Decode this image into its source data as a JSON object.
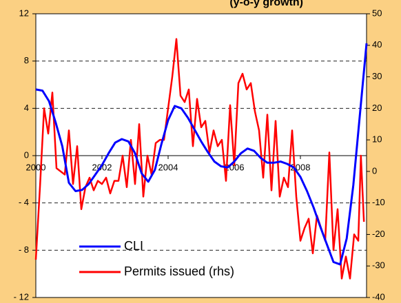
{
  "chart_data": {
    "type": "line",
    "title": "(y-o-y growth)",
    "xlim": [
      2000,
      2010
    ],
    "xticks": [
      2000,
      2002,
      2004,
      2006,
      2008
    ],
    "ylim": [
      -12,
      12
    ],
    "yticks": [
      {
        "value": 12,
        "label": "12"
      },
      {
        "value": 8,
        "label": "8"
      },
      {
        "value": 4,
        "label": "4"
      },
      {
        "value": 0,
        "label": "0"
      },
      {
        "value": -4,
        "label": "- 4"
      },
      {
        "value": -8,
        "label": "- 8"
      },
      {
        "value": -12,
        "label": "- 12"
      }
    ],
    "y2lim": [
      -40,
      50
    ],
    "y2ticks": [
      50,
      40,
      30,
      20,
      10,
      0,
      -10,
      -20,
      -30,
      -40
    ],
    "grid": true,
    "legend": "lower left",
    "series": [
      {
        "name": "CLI",
        "color": "#0000ff",
        "x": [
          2000,
          2000.2,
          2000.4,
          2000.6,
          2000.8,
          2001.0,
          2001.2,
          2001.4,
          2001.6,
          2001.8,
          2002.0,
          2002.2,
          2002.4,
          2002.6,
          2002.8,
          2003.0,
          2003.2,
          2003.4,
          2003.6,
          2003.8,
          2004.0,
          2004.2,
          2004.4,
          2004.6,
          2004.8,
          2005.0,
          2005.2,
          2005.4,
          2005.6,
          2005.8,
          2006.0,
          2006.2,
          2006.4,
          2006.6,
          2006.8,
          2007.0,
          2007.2,
          2007.4,
          2007.6,
          2007.8,
          2008.0,
          2008.2,
          2008.4,
          2008.6,
          2008.8,
          2009.0,
          2009.2,
          2009.4,
          2009.6,
          2009.8,
          2010.0
        ],
        "values": [
          5.6,
          5.5,
          4.6,
          2.8,
          0.8,
          -2.3,
          -3.0,
          -2.9,
          -2.4,
          -1.6,
          -0.8,
          0.2,
          1.1,
          1.4,
          1.2,
          0.2,
          -1.5,
          -2.2,
          -1.2,
          1.0,
          3.0,
          4.2,
          4.0,
          3.2,
          2.2,
          1.2,
          0.3,
          -0.5,
          -0.9,
          -1.0,
          -0.5,
          0.2,
          0.6,
          0.4,
          -0.2,
          -0.6,
          -0.6,
          -0.5,
          -0.7,
          -1.0,
          -1.8,
          -3.0,
          -4.4,
          -6.0,
          -7.5,
          -9.0,
          -9.2,
          -7.0,
          -2.5,
          3.5,
          9.5
        ]
      },
      {
        "name": "Permits issued (rhs)",
        "color": "#ff0000",
        "axis": "y2",
        "x": [
          2000,
          2000.125,
          2000.25,
          2000.375,
          2000.5,
          2000.625,
          2000.75,
          2000.875,
          2001,
          2001.125,
          2001.25,
          2001.375,
          2001.5,
          2001.625,
          2001.75,
          2001.875,
          2002,
          2002.125,
          2002.25,
          2002.375,
          2002.5,
          2002.625,
          2002.75,
          2002.875,
          2003,
          2003.125,
          2003.25,
          2003.375,
          2003.5,
          2003.625,
          2003.75,
          2003.875,
          2004,
          2004.125,
          2004.25,
          2004.375,
          2004.5,
          2004.625,
          2004.75,
          2004.875,
          2005,
          2005.125,
          2005.25,
          2005.375,
          2005.5,
          2005.625,
          2005.75,
          2005.875,
          2006,
          2006.125,
          2006.25,
          2006.375,
          2006.5,
          2006.625,
          2006.75,
          2006.875,
          2007,
          2007.125,
          2007.25,
          2007.375,
          2007.5,
          2007.625,
          2007.75,
          2007.875,
          2008,
          2008.125,
          2008.25,
          2008.375,
          2008.5,
          2008.625,
          2008.75,
          2008.875,
          2009,
          2009.125,
          2009.25,
          2009.375,
          2009.5,
          2009.625,
          2009.75,
          2009.83,
          2009.92
        ],
        "values": [
          -28,
          -5,
          20,
          12,
          25,
          1,
          0,
          -1,
          13,
          -4,
          8,
          -12,
          -5,
          -2,
          -6,
          -3,
          -4,
          -2,
          -7,
          -3,
          -3,
          5,
          -5,
          10,
          -4,
          15,
          -8,
          5,
          -1,
          9,
          10,
          10,
          20,
          30,
          42,
          24,
          22,
          26,
          8,
          23,
          14,
          16,
          6,
          13,
          8,
          10,
          -3,
          21,
          2,
          28,
          31,
          26,
          28,
          19,
          13,
          -2,
          18,
          -6,
          16,
          -8,
          -2,
          -5,
          13,
          -8,
          -22,
          -18,
          -15,
          -26,
          -14,
          -18,
          -22,
          6,
          -25,
          -12,
          -34,
          -27,
          -34,
          -20,
          -22,
          5,
          -16
        ]
      }
    ]
  }
}
